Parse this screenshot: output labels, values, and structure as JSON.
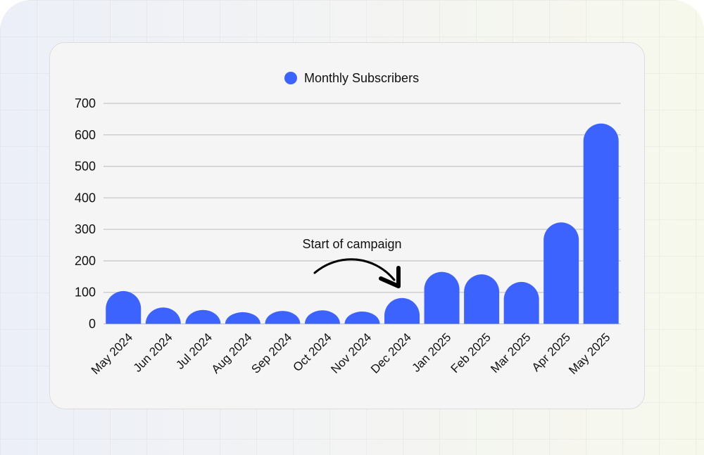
{
  "chart_data": {
    "type": "bar",
    "title": "",
    "legend": [
      "Monthly Subscribers"
    ],
    "legend_placement": "top-center",
    "categories": [
      "May 2024",
      "Jun 2024",
      "Jul 2024",
      "Aug 2024",
      "Sep 2024",
      "Oct 2024",
      "Nov 2024",
      "Dec 2024",
      "Jan 2025",
      "Feb 2025",
      "Mar 2025",
      "Apr 2025",
      "May 2025"
    ],
    "series": [
      {
        "name": "Monthly Subscribers",
        "values": [
          104,
          52,
          44,
          37,
          41,
          43,
          39,
          82,
          165,
          157,
          133,
          322,
          636
        ],
        "color": "#3d63ff"
      }
    ],
    "ylim": [
      0,
      700
    ],
    "yticks": [
      0,
      100,
      200,
      300,
      400,
      500,
      600,
      700
    ],
    "grid": true,
    "xlabel": "",
    "ylabel": "",
    "annotation": {
      "text": "Start of campaign",
      "points_to": "Dec 2024"
    }
  }
}
